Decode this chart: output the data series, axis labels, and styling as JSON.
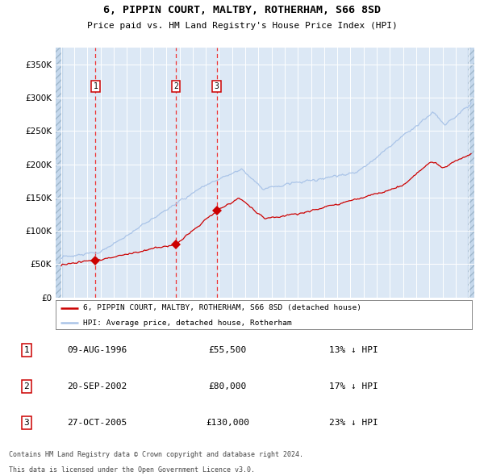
{
  "title": "6, PIPPIN COURT, MALTBY, ROTHERHAM, S66 8SD",
  "subtitle": "Price paid vs. HM Land Registry's House Price Index (HPI)",
  "legend_line1": "6, PIPPIN COURT, MALTBY, ROTHERHAM, S66 8SD (detached house)",
  "legend_line2": "HPI: Average price, detached house, Rotherham",
  "sale_date1": "09-AUG-1996",
  "sale_date2": "20-SEP-2002",
  "sale_date3": "27-OCT-2005",
  "sale_price1": "£55,500",
  "sale_price2": "£80,000",
  "sale_price3": "£130,000",
  "sale_pct1": "13% ↓ HPI",
  "sale_pct2": "17% ↓ HPI",
  "sale_pct3": "23% ↓ HPI",
  "sale_year1": 1996.61,
  "sale_year2": 2002.72,
  "sale_year3": 2005.82,
  "sale_val1": 55500,
  "sale_val2": 80000,
  "sale_val3": 130000,
  "hpi_color": "#aac4e8",
  "price_color": "#cc0000",
  "marker_color": "#cc0000",
  "background_color": "#dce8f5",
  "grid_color": "#ffffff",
  "dashed_color": "#ee3333",
  "ylim_max": 375000,
  "ylim_min": 0,
  "footer_line1": "Contains HM Land Registry data © Crown copyright and database right 2024.",
  "footer_line2": "This data is licensed under the Open Government Licence v3.0."
}
